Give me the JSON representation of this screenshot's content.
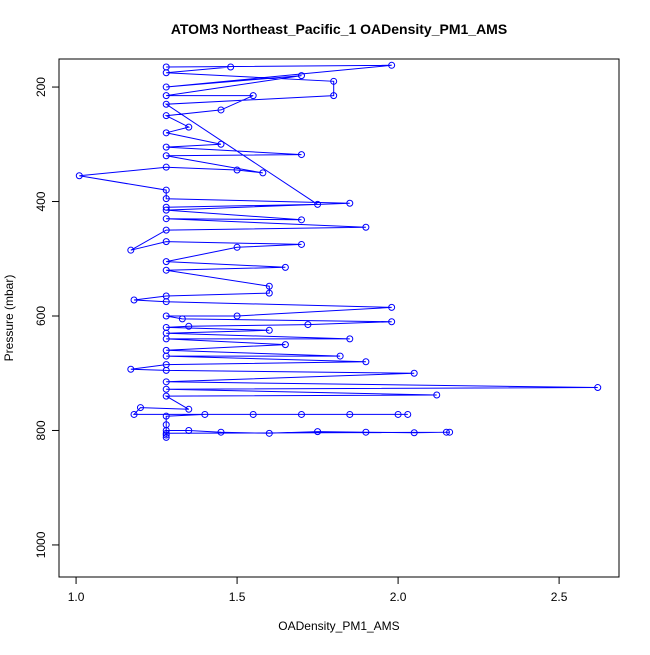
{
  "chart_data": {
    "type": "line",
    "title": "ATOM3 Northeast_Pacific_1 OADensity_PM1_AMS",
    "x_label": "OADensity_PM1_AMS",
    "y_label": "Pressure (mbar)",
    "color": "#0000ff",
    "markers": "open-circle",
    "x": [
      1.28,
      1.28,
      1.28,
      1.35,
      1.45,
      1.6,
      1.75,
      1.9,
      2.05,
      2.15,
      2.16,
      1.28,
      1.28,
      1.28,
      1.4,
      1.55,
      1.7,
      1.85,
      2.0,
      2.03,
      1.18,
      1.2,
      1.35,
      1.28,
      2.12,
      1.28,
      2.62,
      1.28,
      2.05,
      1.28,
      1.17,
      1.28,
      1.9,
      1.28,
      1.82,
      1.28,
      1.65,
      1.28,
      1.85,
      1.28,
      1.6,
      1.28,
      1.35,
      1.72,
      1.98,
      1.33,
      1.28,
      1.5,
      1.98,
      1.28,
      1.18,
      1.28,
      1.6,
      1.6,
      1.28,
      1.65,
      1.28,
      1.5,
      1.7,
      1.28,
      1.17,
      1.28,
      1.9,
      1.28,
      1.7,
      1.28,
      1.85,
      1.28,
      1.28,
      1.01,
      1.28,
      1.5,
      1.58,
      1.28,
      1.7,
      1.28,
      1.45,
      1.28,
      1.35,
      1.28,
      1.45,
      1.55,
      1.28,
      1.7,
      1.28,
      1.98,
      1.28,
      1.48,
      1.28,
      1.8,
      1.8,
      1.28,
      1.75,
      1.28
    ],
    "values": [
      812,
      808,
      800,
      800,
      803,
      805,
      802,
      803,
      804,
      803,
      803,
      805,
      790,
      775,
      772,
      772,
      772,
      772,
      772,
      772,
      772,
      760,
      763,
      740,
      738,
      728,
      725,
      715,
      700,
      695,
      693,
      685,
      680,
      670,
      670,
      660,
      650,
      640,
      640,
      630,
      625,
      620,
      618,
      615,
      610,
      605,
      600,
      600,
      585,
      575,
      572,
      565,
      560,
      548,
      520,
      515,
      505,
      480,
      475,
      470,
      485,
      450,
      445,
      430,
      432,
      415,
      403,
      395,
      380,
      355,
      340,
      345,
      350,
      320,
      318,
      305,
      300,
      280,
      270,
      250,
      240,
      215,
      215,
      180,
      200,
      162,
      165,
      165,
      175,
      190,
      215,
      230,
      405,
      410
    ],
    "xlim": [
      0.947,
      2.686
    ],
    "ylim": [
      1056,
      151
    ],
    "xticks": [
      {
        "value": 1.0,
        "label": "1.0"
      },
      {
        "value": 1.5,
        "label": "1.5"
      },
      {
        "value": 2.0,
        "label": "2.0"
      },
      {
        "value": 2.5,
        "label": "2.5"
      }
    ],
    "yticks": [
      200,
      400,
      600,
      800,
      1000
    ]
  }
}
